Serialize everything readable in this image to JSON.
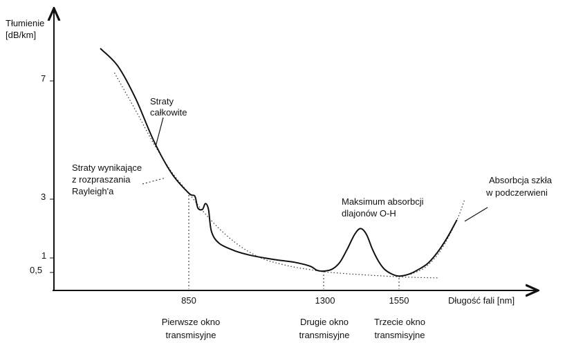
{
  "chart_data": {
    "type": "line",
    "ylabel_lines": [
      "Tłumienie",
      "[dB/km]"
    ],
    "xlabel": "Długość fali [nm]",
    "y_ticks": [
      "7",
      "3",
      "1",
      "0,5"
    ],
    "x_ticks": [
      "850",
      "1300",
      "1550"
    ],
    "series": [
      {
        "points": [
          [
            600,
            9.0
          ],
          [
            650,
            7.9
          ],
          [
            700,
            6.4
          ],
          [
            750,
            5.0
          ],
          [
            800,
            3.9
          ],
          [
            850,
            3.2
          ],
          [
            870,
            3.1
          ],
          [
            880,
            2.7
          ],
          [
            895,
            2.65
          ],
          [
            905,
            2.85
          ],
          [
            915,
            2.65
          ],
          [
            925,
            1.9
          ],
          [
            950,
            1.5
          ],
          [
            1000,
            1.25
          ],
          [
            1050,
            1.1
          ],
          [
            1100,
            1.0
          ],
          [
            1150,
            0.92
          ],
          [
            1200,
            0.85
          ],
          [
            1250,
            0.72
          ],
          [
            1275,
            0.57
          ],
          [
            1300,
            0.55
          ],
          [
            1325,
            0.62
          ],
          [
            1350,
            0.85
          ],
          [
            1375,
            1.3
          ],
          [
            1400,
            1.8
          ],
          [
            1420,
            2.0
          ],
          [
            1440,
            1.8
          ],
          [
            1460,
            1.3
          ],
          [
            1480,
            0.9
          ],
          [
            1500,
            0.62
          ],
          [
            1525,
            0.46
          ],
          [
            1550,
            0.4
          ],
          [
            1575,
            0.45
          ],
          [
            1600,
            0.6
          ],
          [
            1625,
            0.82
          ],
          [
            1650,
            1.2
          ],
          [
            1675,
            1.7
          ],
          [
            1700,
            2.3
          ]
        ]
      }
    ],
    "rayleigh_points": [
      [
        640,
        7.5
      ],
      [
        700,
        6.0
      ],
      [
        750,
        4.9
      ],
      [
        800,
        3.95
      ],
      [
        850,
        3.2
      ],
      [
        900,
        2.55
      ],
      [
        950,
        2.0
      ],
      [
        1000,
        1.55
      ],
      [
        1050,
        1.2
      ],
      [
        1100,
        0.95
      ],
      [
        1150,
        0.8
      ],
      [
        1200,
        0.68
      ],
      [
        1250,
        0.6
      ],
      [
        1300,
        0.52
      ],
      [
        1400,
        0.45
      ],
      [
        1500,
        0.4
      ],
      [
        1550,
        0.38
      ],
      [
        1600,
        0.36
      ],
      [
        1650,
        0.35
      ]
    ],
    "ir_absorption_points": [
      [
        1580,
        0.45
      ],
      [
        1620,
        0.7
      ],
      [
        1660,
        1.3
      ],
      [
        1700,
        2.3
      ],
      [
        1720,
        3.0
      ]
    ],
    "annotations": {
      "total_losses": [
        "Straty",
        "całkowite"
      ],
      "rayleigh": [
        "Straty wynikające",
        "z rozpraszania",
        "Rayleigh'a"
      ],
      "oh_peak": [
        "Maksimum absorbcji",
        "dlajonów O-H"
      ],
      "ir_absorption": [
        "Absorbcja szkła",
        "w podczerwieni"
      ],
      "window_1": [
        "Pierwsze okno",
        "transmisyjne"
      ],
      "window_2": [
        "Drugie okno",
        "transmisyjne"
      ],
      "window_3": [
        "Trzecie okno",
        "transmisyjne"
      ]
    }
  }
}
